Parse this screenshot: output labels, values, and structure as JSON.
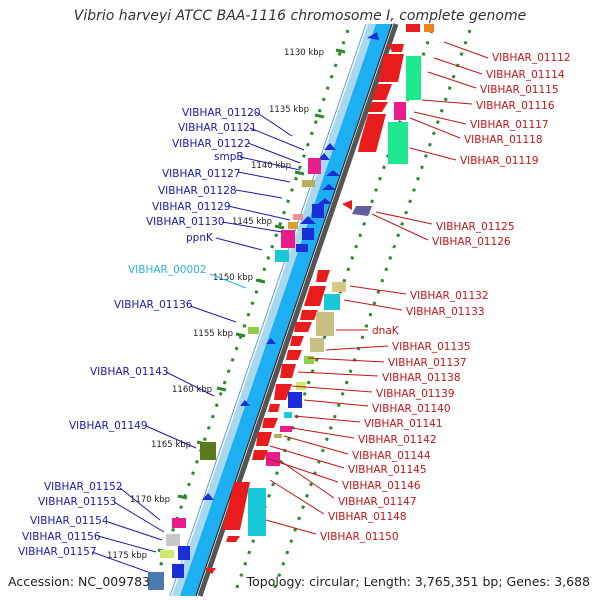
{
  "title": "Vibrio harveyi ATCC BAA-1116 chromosome I, complete genome",
  "accession": "Accession: NC_009783",
  "topology": "Topology: circular; Length: 3,765,351 bp; Genes: 3,688",
  "colors": {
    "backbone_light": "#a8d8f0",
    "backbone_dark": "#18aaf0",
    "backbone_edge": "#3c3c3c",
    "plus_label": "#1a1aa8",
    "minus_label": "#c01515",
    "highlight_label": "#2bb6d9",
    "tick": "#2a8a2a"
  },
  "kbp_ticks": [
    "1130 kbp",
    "1135 kbp",
    "1140 kbp",
    "1145 kbp",
    "1150 kbp",
    "1155 kbp",
    "1160 kbp",
    "1165 kbp",
    "1170 kbp",
    "1175 kbp"
  ],
  "left_labels": [
    "VIBHAR_01120",
    "VIBHAR_01121",
    "VIBHAR_01122",
    "smpB",
    "VIBHAR_01127",
    "VIBHAR_01128",
    "VIBHAR_01129",
    "VIBHAR_01130",
    "ppnK",
    "VIBHAR_00002",
    "VIBHAR_01136",
    "VIBHAR_01143",
    "VIBHAR_01149",
    "VIBHAR_01152",
    "VIBHAR_01153",
    "VIBHAR_01154",
    "VIBHAR_01156",
    "VIBHAR_01157"
  ],
  "right_labels": [
    "VIBHAR_01112",
    "VIBHAR_01114",
    "VIBHAR_01115",
    "VIBHAR_01116",
    "VIBHAR_01117",
    "VIBHAR_01118",
    "VIBHAR_01119",
    "VIBHAR_01125",
    "VIBHAR_01126",
    "VIBHAR_01132",
    "VIBHAR_01133",
    "dnaK",
    "VIBHAR_01135",
    "VIBHAR_01137",
    "VIBHAR_01138",
    "VIBHAR_01139",
    "VIBHAR_01140",
    "VIBHAR_01141",
    "VIBHAR_01142",
    "VIBHAR_01144",
    "VIBHAR_01145",
    "VIBHAR_01146",
    "VIBHAR_01147",
    "VIBHAR_01148",
    "VIBHAR_01150"
  ]
}
